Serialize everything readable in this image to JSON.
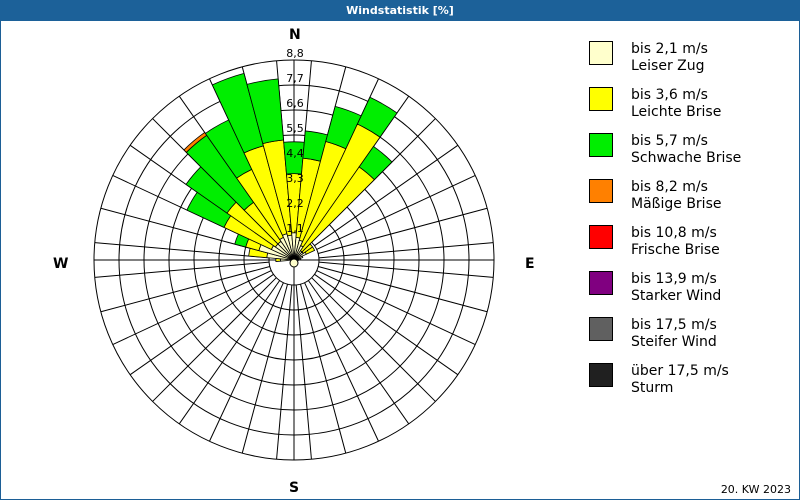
{
  "title": "Windstatistik [%]",
  "footer": "20. KW 2023",
  "compass": {
    "n": "N",
    "e": "E",
    "s": "S",
    "w": "W"
  },
  "legend": [
    {
      "line1": "bis 2,1 m/s",
      "line2": "Leiser Zug",
      "color": "#ffffcc"
    },
    {
      "line1": "bis 3,6 m/s",
      "line2": "Leichte Brise",
      "color": "#ffff00"
    },
    {
      "line1": "bis 5,7 m/s",
      "line2": "Schwache Brise",
      "color": "#00ee00"
    },
    {
      "line1": "bis 8,2 m/s",
      "line2": "Mäßige Brise",
      "color": "#ff8000"
    },
    {
      "line1": "bis 10,8 m/s",
      "line2": "Frische Brise",
      "color": "#ff0000"
    },
    {
      "line1": "bis 13,9 m/s",
      "line2": "Starker Wind",
      "color": "#800080"
    },
    {
      "line1": "bis 17,5 m/s",
      "line2": "Steifer Wind",
      "color": "#606060"
    },
    {
      "line1": "über 17,5 m/s",
      "line2": "Sturm",
      "color": "#202020"
    }
  ],
  "chart_data": {
    "type": "wind-rose",
    "title": "Windstatistik [%]",
    "subtitle": "20. KW 2023",
    "radial_ticks": [
      "1,1",
      "2,2",
      "3,3",
      "4,4",
      "5,5",
      "6,6",
      "7,7",
      "8,8"
    ],
    "radial_range": [
      0,
      8.8
    ],
    "sector_width_deg": 10,
    "series_names": [
      "bis 2,1 m/s",
      "bis 3,6 m/s",
      "bis 5,7 m/s",
      "bis 8,2 m/s"
    ],
    "sectors": [
      {
        "dir": 270,
        "cum": [
          0.6,
          0.8,
          0.8,
          0.8
        ]
      },
      {
        "dir": 280,
        "cum": [
          1.2,
          2.0,
          2.0,
          2.0
        ]
      },
      {
        "dir": 290,
        "cum": [
          1.6,
          2.2,
          2.7,
          2.7
        ]
      },
      {
        "dir": 300,
        "cum": [
          1.1,
          3.4,
          5.2,
          5.2
        ]
      },
      {
        "dir": 310,
        "cum": [
          1.0,
          3.6,
          5.8,
          5.8
        ]
      },
      {
        "dir": 320,
        "cum": [
          1.0,
          3.1,
          6.7,
          6.85
        ]
      },
      {
        "dir": 330,
        "cum": [
          1.1,
          4.4,
          6.8,
          6.8
        ]
      },
      {
        "dir": 340,
        "cum": [
          1.2,
          5.2,
          8.5,
          8.5
        ]
      },
      {
        "dir": 350,
        "cum": [
          1.1,
          5.3,
          8.0,
          8.0
        ]
      },
      {
        "dir": 0,
        "cum": [
          1.2,
          3.8,
          5.2,
          5.2
        ]
      },
      {
        "dir": 10,
        "cum": [
          1.0,
          4.5,
          5.7,
          5.7
        ]
      },
      {
        "dir": 20,
        "cum": [
          0.9,
          5.4,
          7.0,
          7.0
        ]
      },
      {
        "dir": 30,
        "cum": [
          0.7,
          6.6,
          7.9,
          7.9
        ]
      },
      {
        "dir": 40,
        "cum": [
          0.5,
          5.0,
          6.1,
          6.1
        ]
      },
      {
        "dir": 50,
        "cum": [
          0.5,
          1.0,
          1.0,
          1.0
        ]
      },
      {
        "dir": 60,
        "cum": [
          0.6,
          1.0,
          1.0,
          1.0
        ]
      },
      {
        "dir": 70,
        "cum": [
          0.4,
          0.4,
          0.4,
          0.4
        ]
      },
      {
        "dir": 80,
        "cum": [
          0.3,
          0.3,
          0.3,
          0.3
        ]
      },
      {
        "dir": 90,
        "cum": [
          0.2,
          0.2,
          0.2,
          0.2
        ]
      }
    ]
  }
}
